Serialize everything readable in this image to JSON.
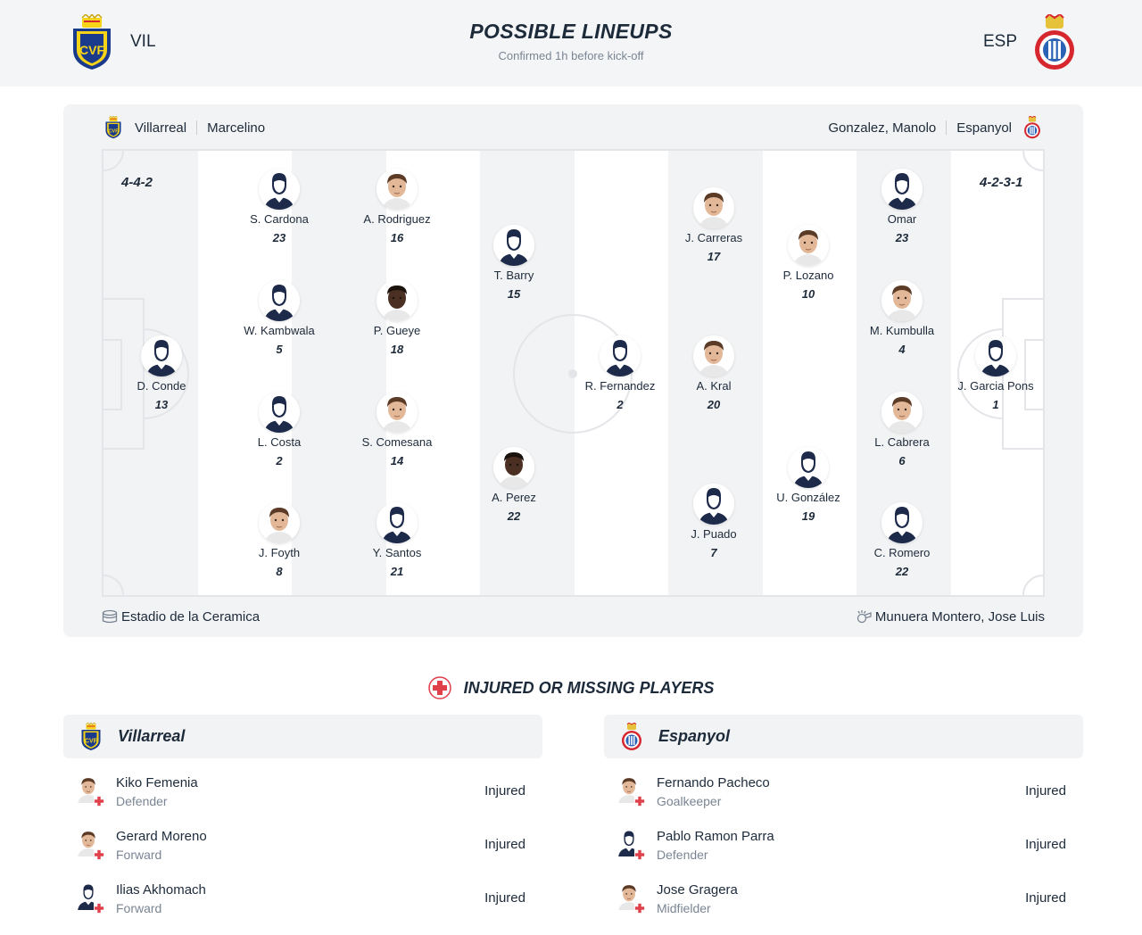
{
  "header": {
    "home_code": "VIL",
    "away_code": "ESP",
    "title": "POSSIBLE LINEUPS",
    "subtitle": "Confirmed 1h before kick-off"
  },
  "home": {
    "name": "Villarreal",
    "coach": "Marcelino",
    "formation": "4-4-2",
    "players": [
      {
        "name": "D. Conde",
        "number": "13",
        "photo": "silhouette"
      },
      {
        "name": "S. Cardona",
        "number": "23",
        "photo": "silhouette"
      },
      {
        "name": "W. Kambwala",
        "number": "5",
        "photo": "silhouette"
      },
      {
        "name": "L. Costa",
        "number": "2",
        "photo": "silhouette"
      },
      {
        "name": "J. Foyth",
        "number": "8",
        "photo": "face"
      },
      {
        "name": "A. Rodriguez",
        "number": "16",
        "photo": "face"
      },
      {
        "name": "P. Gueye",
        "number": "18",
        "photo": "face-dark"
      },
      {
        "name": "S. Comesana",
        "number": "14",
        "photo": "face"
      },
      {
        "name": "Y. Santos",
        "number": "21",
        "photo": "silhouette"
      },
      {
        "name": "T. Barry",
        "number": "15",
        "photo": "silhouette"
      },
      {
        "name": "A. Perez",
        "number": "22",
        "photo": "face-dark"
      }
    ]
  },
  "away": {
    "name": "Espanyol",
    "coach": "Gonzalez, Manolo",
    "formation": "4-2-3-1",
    "players": [
      {
        "name": "R. Fernandez",
        "number": "2",
        "photo": "silhouette"
      },
      {
        "name": "J. Carreras",
        "number": "17",
        "photo": "face"
      },
      {
        "name": "A. Kral",
        "number": "20",
        "photo": "face"
      },
      {
        "name": "J. Puado",
        "number": "7",
        "photo": "silhouette"
      },
      {
        "name": "P. Lozano",
        "number": "10",
        "photo": "face"
      },
      {
        "name": "U. González",
        "number": "19",
        "photo": "silhouette"
      },
      {
        "name": "Omar",
        "number": "23",
        "photo": "silhouette"
      },
      {
        "name": "M. Kumbulla",
        "number": "4",
        "photo": "face"
      },
      {
        "name": "L. Cabrera",
        "number": "6",
        "photo": "face"
      },
      {
        "name": "C. Romero",
        "number": "22",
        "photo": "silhouette"
      },
      {
        "name": "J. Garcia Pons",
        "number": "1",
        "photo": "silhouette"
      }
    ]
  },
  "venue": "Estadio de la Ceramica",
  "referee": "Munuera Montero, Jose Luis",
  "injured": {
    "title": "INJURED OR MISSING PLAYERS",
    "home": [
      {
        "name": "Kiko Femenia",
        "position": "Defender",
        "status": "Injured"
      },
      {
        "name": "Gerard Moreno",
        "position": "Forward",
        "status": "Injured"
      },
      {
        "name": "Ilias Akhomach",
        "position": "Forward",
        "status": "Injured"
      }
    ],
    "away": [
      {
        "name": "Fernando Pacheco",
        "position": "Goalkeeper",
        "status": "Injured"
      },
      {
        "name": "Pablo Ramon Parra",
        "position": "Defender",
        "status": "Injured"
      },
      {
        "name": "Jose Gragera",
        "position": "Midfielder",
        "status": "Injured"
      }
    ]
  },
  "colors": {
    "villarreal_yellow": "#f7d417",
    "villarreal_blue": "#1a3b8c",
    "espanyol_blue": "#2a62b5",
    "espanyol_red": "#d6272f",
    "injury_red": "#e0404a",
    "text_dark": "#1d2a3a",
    "text_muted": "#7a8594"
  }
}
